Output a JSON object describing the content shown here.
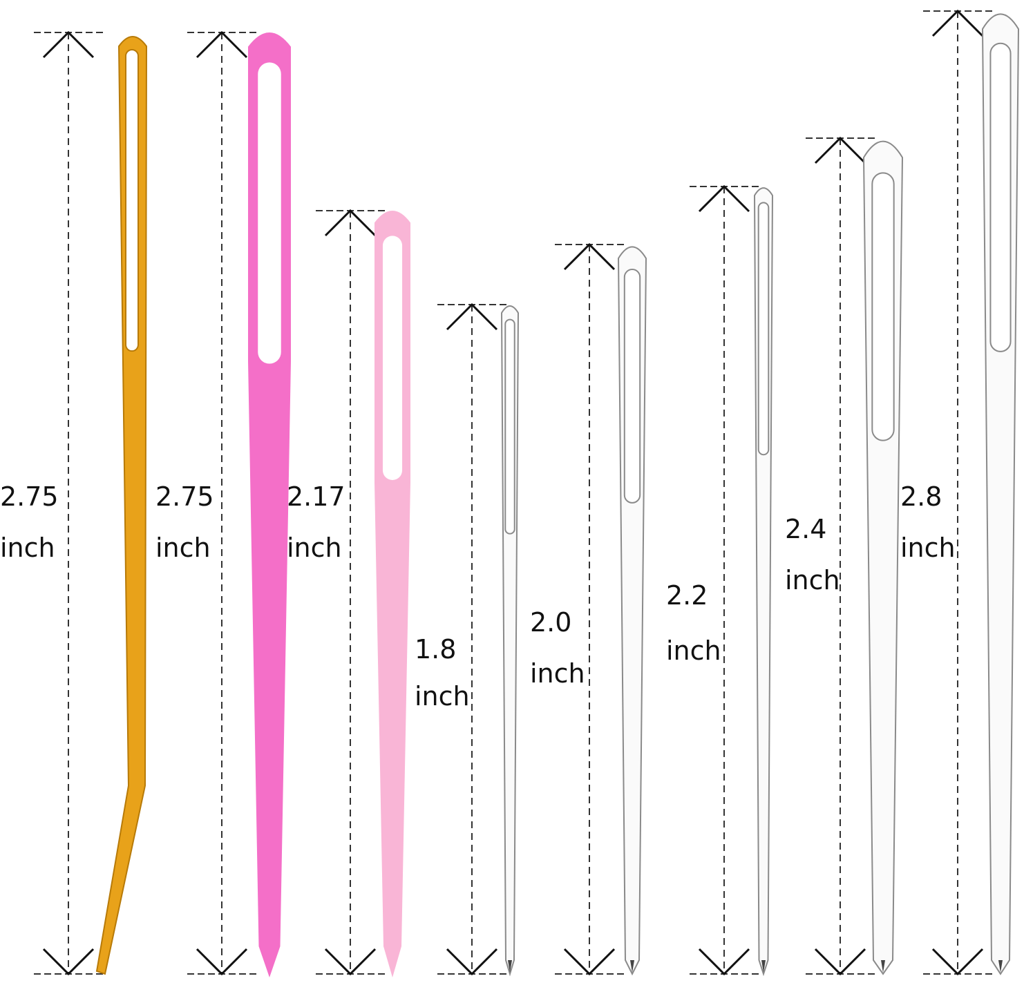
{
  "colors": {
    "gold": "#e8a21a",
    "pink": "#f46fc8",
    "light_pink": "#f9b5d6",
    "silver": "#8a8a8a",
    "dimension_line": "#333333"
  },
  "needles": [
    {
      "type": "gold-bent-tapestry-needle",
      "length": "2.75",
      "unit": "inch",
      "color": "gold"
    },
    {
      "type": "pink-plastic-needle",
      "length": "2.75",
      "unit": "inch",
      "color": "pink"
    },
    {
      "type": "light-pink-plastic-needle",
      "length": "2.17",
      "unit": "inch",
      "color": "light_pink"
    },
    {
      "type": "steel-needle",
      "length": "1.8",
      "unit": "inch",
      "color": "silver"
    },
    {
      "type": "steel-needle",
      "length": "2.0",
      "unit": "inch",
      "color": "silver"
    },
    {
      "type": "steel-needle",
      "length": "2.2",
      "unit": "inch",
      "color": "silver"
    },
    {
      "type": "steel-needle",
      "length": "2.4",
      "unit": "inch",
      "color": "silver"
    },
    {
      "type": "steel-needle",
      "length": "2.8",
      "unit": "inch",
      "color": "silver"
    }
  ]
}
